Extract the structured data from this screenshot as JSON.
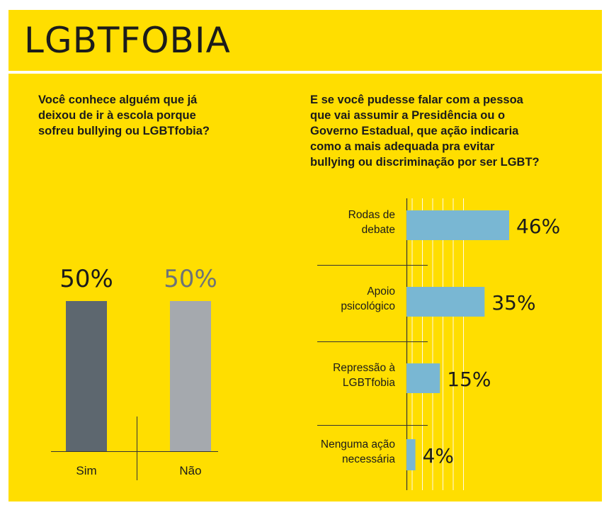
{
  "title": "LGBTFOBIA",
  "colors": {
    "background": "#ffde00",
    "sim_bar": "#5d676f",
    "nao_bar": "#a5a9ae",
    "horizontal_bar": "#79b7d3",
    "text": "#1b1b1b"
  },
  "chart_data": [
    {
      "type": "bar",
      "title": "Você conhece alguém que já\ndeixou de ir à escola porque\nsofreu bullying ou LGBTfobia?",
      "categories": [
        "Sim",
        "Não"
      ],
      "values": [
        50,
        50
      ],
      "value_labels": [
        "50%",
        "50%"
      ],
      "ylim": [
        0,
        100
      ]
    },
    {
      "type": "bar",
      "orientation": "horizontal",
      "title": "E se você pudesse falar com a pessoa\nque vai assumir a Presidência ou o\nGoverno Estadual, que ação indicaria\ncomo a mais adequada pra evitar\nbullying ou discriminação por ser LGBT?",
      "categories": [
        "Rodas de\ndebate",
        "Apoio\npsicológico",
        "Repressão à\nLGBTfobia",
        "Nenguma ação\nnecessária"
      ],
      "values": [
        46,
        35,
        15,
        4
      ],
      "value_labels": [
        "46%",
        "35%",
        "15%",
        "4%"
      ],
      "xlim": [
        0,
        100
      ]
    }
  ]
}
